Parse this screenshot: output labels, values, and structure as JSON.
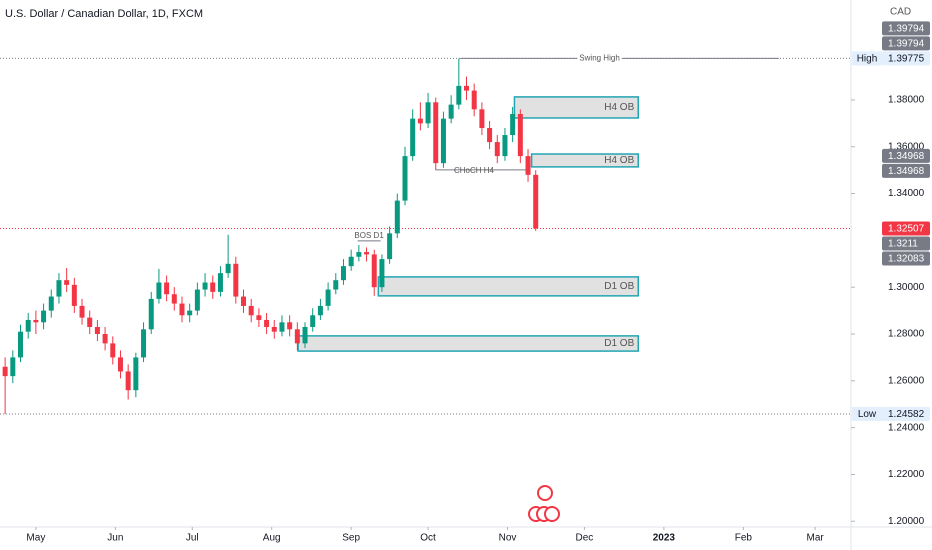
{
  "chart_data": {
    "type": "candlestick",
    "title": "U.S. Dollar / Canadian Dollar, 1D, FXCM",
    "y_axis_label": "CAD",
    "up_color": "#089981",
    "down_color": "#f23645",
    "x": [
      -12,
      -9,
      -6,
      -3,
      0,
      3,
      6,
      9,
      12,
      15,
      18,
      21,
      24,
      27,
      30,
      33,
      36,
      39,
      42,
      45,
      48,
      51,
      54,
      57,
      60,
      63,
      66,
      69,
      72,
      75,
      78,
      81,
      84,
      87,
      90,
      93,
      96,
      99,
      102,
      105,
      108,
      111,
      114,
      117,
      120,
      123,
      126,
      129,
      132,
      135,
      138,
      141,
      144,
      147,
      150,
      153,
      156,
      159,
      162,
      165,
      168,
      171,
      174,
      177,
      180,
      183,
      186,
      189,
      192,
      195
    ],
    "open": [
      1.266,
      1.262,
      1.27,
      1.281,
      1.286,
      1.285,
      1.29,
      1.296,
      1.303,
      1.301,
      1.292,
      1.287,
      1.283,
      1.28,
      1.276,
      1.27,
      1.264,
      1.256,
      1.27,
      1.282,
      1.295,
      1.302,
      1.297,
      1.293,
      1.288,
      1.29,
      1.299,
      1.302,
      1.298,
      1.306,
      1.31,
      1.296,
      1.292,
      1.288,
      1.286,
      1.283,
      1.281,
      1.285,
      1.282,
      1.276,
      1.283,
      1.288,
      1.292,
      1.299,
      1.303,
      1.309,
      1.313,
      1.315,
      1.314,
      1.3,
      1.312,
      1.323,
      1.337,
      1.356,
      1.372,
      1.37,
      1.379,
      1.353,
      1.372,
      1.378,
      1.386,
      1.384,
      1.376,
      1.368,
      1.362,
      1.356,
      1.365,
      1.374,
      1.356,
      1.348
    ],
    "high": [
      1.27,
      1.273,
      1.284,
      1.289,
      1.29,
      1.293,
      1.299,
      1.306,
      1.3082,
      1.304,
      1.295,
      1.29,
      1.286,
      1.283,
      1.279,
      1.273,
      1.267,
      1.272,
      1.285,
      1.298,
      1.3078,
      1.305,
      1.3,
      1.296,
      1.293,
      1.302,
      1.306,
      1.305,
      1.309,
      1.3224,
      1.313,
      1.299,
      1.295,
      1.291,
      1.289,
      1.286,
      1.288,
      1.288,
      1.285,
      1.285,
      1.291,
      1.295,
      1.302,
      1.306,
      1.312,
      1.316,
      1.318,
      1.317,
      1.316,
      1.314,
      1.326,
      1.34,
      1.36,
      1.376,
      1.379,
      1.383,
      1.381,
      1.375,
      1.382,
      1.3977,
      1.39,
      1.387,
      1.379,
      1.371,
      1.365,
      1.368,
      1.377,
      1.376,
      1.359,
      1.35
    ],
    "low": [
      1.2458,
      1.259,
      1.268,
      1.278,
      1.28,
      1.282,
      1.287,
      1.293,
      1.298,
      1.289,
      1.284,
      1.28,
      1.277,
      1.273,
      1.267,
      1.261,
      1.252,
      1.253,
      1.268,
      1.28,
      1.293,
      1.294,
      1.29,
      1.285,
      1.285,
      1.288,
      1.296,
      1.295,
      1.296,
      1.304,
      1.293,
      1.289,
      1.285,
      1.283,
      1.28,
      1.278,
      1.279,
      1.279,
      1.273,
      1.274,
      1.281,
      1.286,
      1.29,
      1.297,
      1.301,
      1.307,
      1.311,
      1.311,
      1.2963,
      1.298,
      1.31,
      1.321,
      1.335,
      1.354,
      1.367,
      1.368,
      1.3501,
      1.351,
      1.37,
      1.376,
      1.38,
      1.373,
      1.365,
      1.359,
      1.353,
      1.354,
      1.362,
      1.353,
      1.345,
      1.324
    ],
    "close": [
      1.262,
      1.27,
      1.281,
      1.286,
      1.285,
      1.29,
      1.296,
      1.303,
      1.301,
      1.292,
      1.287,
      1.283,
      1.28,
      1.276,
      1.27,
      1.264,
      1.256,
      1.27,
      1.282,
      1.295,
      1.302,
      1.297,
      1.293,
      1.288,
      1.29,
      1.299,
      1.302,
      1.298,
      1.306,
      1.31,
      1.296,
      1.292,
      1.288,
      1.286,
      1.283,
      1.281,
      1.285,
      1.282,
      1.276,
      1.283,
      1.288,
      1.292,
      1.299,
      1.303,
      1.309,
      1.313,
      1.315,
      1.314,
      1.3,
      1.312,
      1.323,
      1.337,
      1.356,
      1.372,
      1.37,
      1.379,
      1.353,
      1.372,
      1.378,
      1.386,
      1.384,
      1.376,
      1.368,
      1.362,
      1.356,
      1.365,
      1.374,
      1.356,
      1.348,
      1.3251
    ],
    "xlim": [
      -14,
      318
    ],
    "xticks": [
      {
        "value": 0,
        "label": "May"
      },
      {
        "value": 31,
        "label": "Jun"
      },
      {
        "value": 61,
        "label": "Jul"
      },
      {
        "value": 92,
        "label": "Aug"
      },
      {
        "value": 123,
        "label": "Sep"
      },
      {
        "value": 153,
        "label": "Oct"
      },
      {
        "value": 184,
        "label": "Nov"
      },
      {
        "value": 214,
        "label": "Dec"
      },
      {
        "value": 245,
        "label": "2023"
      },
      {
        "value": 276,
        "label": "Feb"
      },
      {
        "value": 304,
        "label": "Mar"
      }
    ],
    "ylim": [
      1.1984,
      1.4227
    ],
    "yticks": [
      {
        "value": 1.38,
        "label": "1.38000"
      },
      {
        "value": 1.36,
        "label": "1.36000"
      },
      {
        "value": 1.34,
        "label": "1.34000"
      },
      {
        "value": 1.3,
        "label": "1.30000"
      },
      {
        "value": 1.28,
        "label": "1.28000"
      },
      {
        "value": 1.26,
        "label": "1.26000"
      },
      {
        "value": 1.24,
        "label": "1.24000"
      },
      {
        "value": 1.22,
        "label": "1.22000"
      },
      {
        "value": 1.2,
        "label": "1.20000"
      }
    ],
    "zones": [
      {
        "label": "H4 OB",
        "x_start": 186.7,
        "x_end": 235,
        "top": 1.3813,
        "bottom": 1.3723
      },
      {
        "label": "H4 OB",
        "x_start": 193.4,
        "x_end": 235,
        "top": 1.3569,
        "bottom": 1.3514
      },
      {
        "label": "D1 OB",
        "x_start": 133.6,
        "x_end": 235,
        "top": 1.3044,
        "bottom": 1.2963
      },
      {
        "label": "D1 OB",
        "x_start": 102.3,
        "x_end": 235,
        "top": 1.2792,
        "bottom": 1.2727
      }
    ],
    "levels": [
      {
        "label": "BOS D1",
        "x_start": 125.5,
        "x_end": 134.5,
        "value": 1.3198
      },
      {
        "label": "CHoCH H4",
        "x_start": 155.9,
        "x_end": 192.2,
        "value": 1.3501
      },
      {
        "label": "Swing High",
        "x_start": 165.6,
        "x_end": 289.8,
        "value": 1.39775
      }
    ],
    "markers": [
      {
        "value": 1.39794,
        "style": "dark"
      },
      {
        "value": 1.39794,
        "style": "dark"
      },
      {
        "value": 1.39775,
        "label": "High",
        "style": "light"
      },
      {
        "value": 1.34968,
        "style": "dark"
      },
      {
        "value": 1.34968,
        "style": "dark"
      },
      {
        "value": 1.32507,
        "style": "last"
      },
      {
        "value": 1.3211,
        "style": "dark"
      },
      {
        "value": 1.32083,
        "style": "dark"
      },
      {
        "value": 1.24582,
        "label": "Low",
        "style": "light"
      }
    ]
  }
}
